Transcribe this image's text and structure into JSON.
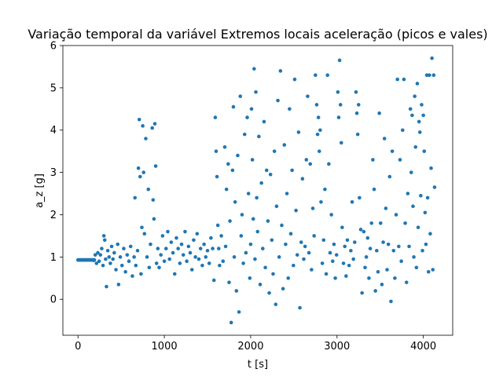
{
  "chart_data": {
    "type": "scatter",
    "title": "Variação temporal da variável Extremos locais aceleração (picos e vales)",
    "xlabel": "t [s]",
    "ylabel": "a_z [g]",
    "xlim": [
      -175,
      4340
    ],
    "ylim": [
      -0.85,
      6.0
    ],
    "xticks": [
      0,
      1000,
      2000,
      3000,
      4000
    ],
    "yticks": [
      0,
      1,
      2,
      3,
      4,
      5,
      6
    ],
    "grid": false,
    "legend": "none",
    "marker_color": "#1f77b4",
    "series": [
      {
        "points": [
          [
            0,
            0.93
          ],
          [
            10,
            0.93
          ],
          [
            20,
            0.93
          ],
          [
            30,
            0.93
          ],
          [
            40,
            0.93
          ],
          [
            50,
            0.93
          ],
          [
            60,
            0.93
          ],
          [
            70,
            0.93
          ],
          [
            80,
            0.93
          ],
          [
            90,
            0.93
          ],
          [
            100,
            0.93
          ],
          [
            110,
            0.93
          ],
          [
            120,
            0.93
          ],
          [
            130,
            0.93
          ],
          [
            140,
            0.93
          ],
          [
            150,
            0.93
          ],
          [
            160,
            0.93
          ],
          [
            170,
            0.93
          ],
          [
            180,
            0.92
          ],
          [
            190,
            0.93
          ],
          [
            200,
            1.05
          ],
          [
            215,
            0.85
          ],
          [
            230,
            1.1
          ],
          [
            245,
            0.9
          ],
          [
            260,
            1.05
          ],
          [
            275,
            1.2
          ],
          [
            290,
            0.8
          ],
          [
            300,
            1.5
          ],
          [
            310,
            1.4
          ],
          [
            320,
            0.95
          ],
          [
            330,
            0.3
          ],
          [
            345,
            1.15
          ],
          [
            360,
            1.0
          ],
          [
            375,
            0.85
          ],
          [
            390,
            1.25
          ],
          [
            405,
            0.95
          ],
          [
            420,
            1.1
          ],
          [
            440,
            0.7
          ],
          [
            460,
            1.3
          ],
          [
            470,
            0.35
          ],
          [
            490,
            1.0
          ],
          [
            510,
            0.8
          ],
          [
            530,
            1.2
          ],
          [
            550,
            0.65
          ],
          [
            570,
            1.05
          ],
          [
            590,
            0.9
          ],
          [
            610,
            1.25
          ],
          [
            630,
            0.55
          ],
          [
            650,
            1.0
          ],
          [
            660,
            2.4
          ],
          [
            670,
            0.8
          ],
          [
            690,
            1.15
          ],
          [
            700,
            3.1
          ],
          [
            710,
            4.25
          ],
          [
            720,
            2.9
          ],
          [
            730,
            0.6
          ],
          [
            740,
            1.7
          ],
          [
            750,
            4.1
          ],
          [
            760,
            3.0
          ],
          [
            770,
            1.55
          ],
          [
            785,
            3.8
          ],
          [
            800,
            1.0
          ],
          [
            815,
            2.6
          ],
          [
            825,
            0.75
          ],
          [
            840,
            1.3
          ],
          [
            860,
            4.05
          ],
          [
            870,
            2.35
          ],
          [
            880,
            1.9
          ],
          [
            890,
            4.15
          ],
          [
            900,
            3.15
          ],
          [
            910,
            0.85
          ],
          [
            925,
            1.2
          ],
          [
            940,
            0.75
          ],
          [
            960,
            1.05
          ],
          [
            980,
            1.5
          ],
          [
            1000,
            0.9
          ],
          [
            1020,
            1.2
          ],
          [
            1040,
            1.6
          ],
          [
            1060,
            0.95
          ],
          [
            1080,
            1.35
          ],
          [
            1100,
            1.1
          ],
          [
            1120,
            0.6
          ],
          [
            1140,
            1.45
          ],
          [
            1160,
            1.2
          ],
          [
            1180,
            0.85
          ],
          [
            1200,
            1.3
          ],
          [
            1220,
            1.05
          ],
          [
            1240,
            1.6
          ],
          [
            1260,
            0.9
          ],
          [
            1280,
            1.25
          ],
          [
            1300,
            1.1
          ],
          [
            1320,
            0.7
          ],
          [
            1340,
            1.4
          ],
          [
            1360,
            1.0
          ],
          [
            1380,
            1.55
          ],
          [
            1400,
            0.95
          ],
          [
            1420,
            1.2
          ],
          [
            1440,
            0.8
          ],
          [
            1460,
            1.3
          ],
          [
            1480,
            1.0
          ],
          [
            1500,
            1.15
          ],
          [
            1520,
            0.85
          ],
          [
            1540,
            1.45
          ],
          [
            1560,
            1.2
          ],
          [
            1575,
            0.45
          ],
          [
            1590,
            4.3
          ],
          [
            1600,
            3.5
          ],
          [
            1610,
            2.9
          ],
          [
            1620,
            1.75
          ],
          [
            1630,
            1.2
          ],
          [
            1640,
            0.8
          ],
          [
            1660,
            1.5
          ],
          [
            1680,
            0.9
          ],
          [
            1700,
            3.6
          ],
          [
            1710,
            1.25
          ],
          [
            1720,
            2.6
          ],
          [
            1740,
            3.2
          ],
          [
            1750,
            0.4
          ],
          [
            1760,
            1.85
          ],
          [
            1775,
            -0.55
          ],
          [
            1790,
            3.05
          ],
          [
            1800,
            4.55
          ],
          [
            1810,
            1.0
          ],
          [
            1820,
            2.3
          ],
          [
            1835,
            0.2
          ],
          [
            1850,
            3.4
          ],
          [
            1865,
            -0.3
          ],
          [
            1880,
            4.8
          ],
          [
            1890,
            1.5
          ],
          [
            1900,
            2.0
          ],
          [
            1915,
            0.85
          ],
          [
            1930,
            3.9
          ],
          [
            1945,
            1.1
          ],
          [
            1960,
            4.3
          ],
          [
            1975,
            2.5
          ],
          [
            1990,
            0.5
          ],
          [
            2000,
            1.3
          ],
          [
            2010,
            4.5
          ],
          [
            2020,
            3.3
          ],
          [
            2030,
            1.9
          ],
          [
            2040,
            5.45
          ],
          [
            2050,
            0.95
          ],
          [
            2060,
            4.9
          ],
          [
            2070,
            2.4
          ],
          [
            2080,
            1.6
          ],
          [
            2095,
            3.85
          ],
          [
            2110,
            0.35
          ],
          [
            2125,
            2.75
          ],
          [
            2140,
            1.2
          ],
          [
            2155,
            4.2
          ],
          [
            2170,
            0.75
          ],
          [
            2185,
            3.05
          ],
          [
            2200,
            1.85
          ],
          [
            2215,
            0.15
          ],
          [
            2230,
            2.95
          ],
          [
            2245,
            1.4
          ],
          [
            2260,
            0.6
          ],
          [
            2275,
            3.5
          ],
          [
            2290,
            -0.12
          ],
          [
            2300,
            2.2
          ],
          [
            2315,
            4.7
          ],
          [
            2330,
            1.0
          ],
          [
            2345,
            5.4
          ],
          [
            2360,
            1.75
          ],
          [
            2375,
            0.25
          ],
          [
            2390,
            3.65
          ],
          [
            2405,
            1.3
          ],
          [
            2420,
            2.5
          ],
          [
            2435,
            0.5
          ],
          [
            2450,
            4.5
          ],
          [
            2465,
            1.55
          ],
          [
            2480,
            3.05
          ],
          [
            2495,
            0.8
          ],
          [
            2510,
            5.2
          ],
          [
            2525,
            2.1
          ],
          [
            2540,
            1.05
          ],
          [
            2555,
            3.95
          ],
          [
            2570,
            -0.2
          ],
          [
            2585,
            1.35
          ],
          [
            2600,
            2.85
          ],
          [
            2615,
            0.95
          ],
          [
            2630,
            1.25
          ],
          [
            2645,
            3.3
          ],
          [
            2660,
            4.8
          ],
          [
            2675,
            1.1
          ],
          [
            2690,
            3.2
          ],
          [
            2705,
            0.7
          ],
          [
            2720,
            2.15
          ],
          [
            2735,
            1.5
          ],
          [
            2750,
            5.3
          ],
          [
            2765,
            4.6
          ],
          [
            2775,
            3.9
          ],
          [
            2785,
            4.3
          ],
          [
            2795,
            3.5
          ],
          [
            2805,
            4.0
          ],
          [
            2815,
            2.3
          ],
          [
            2830,
            0.85
          ],
          [
            2845,
            1.4
          ],
          [
            2860,
            2.6
          ],
          [
            2875,
            0.6
          ],
          [
            2890,
            5.3
          ],
          [
            2905,
            3.2
          ],
          [
            2920,
            1.1
          ],
          [
            2935,
            2.0
          ],
          [
            2950,
            0.9
          ],
          [
            2965,
            1.3
          ],
          [
            2980,
            0.5
          ],
          [
            2995,
            1.05
          ],
          [
            3010,
            4.9
          ],
          [
            3020,
            4.3
          ],
          [
            3030,
            5.65
          ],
          [
            3040,
            4.6
          ],
          [
            3050,
            3.7
          ],
          [
            3060,
            1.7
          ],
          [
            3075,
            0.85
          ],
          [
            3090,
            1.25
          ],
          [
            3105,
            0.55
          ],
          [
            3120,
            1.4
          ],
          [
            3140,
            0.8
          ],
          [
            3160,
            1.15
          ],
          [
            3175,
            2.3
          ],
          [
            3190,
            0.95
          ],
          [
            3205,
            1.35
          ],
          [
            3220,
            4.9
          ],
          [
            3230,
            4.4
          ],
          [
            3240,
            3.9
          ],
          [
            3250,
            4.6
          ],
          [
            3260,
            2.4
          ],
          [
            3275,
            1.65
          ],
          [
            3290,
            0.15
          ],
          [
            3310,
            1.6
          ],
          [
            3325,
            0.75
          ],
          [
            3340,
            1.0
          ],
          [
            3355,
            1.45
          ],
          [
            3370,
            0.5
          ],
          [
            3385,
            1.2
          ],
          [
            3400,
            1.8
          ],
          [
            3415,
            3.3
          ],
          [
            3430,
            2.6
          ],
          [
            3445,
            0.2
          ],
          [
            3460,
            1.15
          ],
          [
            3475,
            0.65
          ],
          [
            3490,
            4.4
          ],
          [
            3505,
            1.8
          ],
          [
            3520,
            0.35
          ],
          [
            3535,
            1.35
          ],
          [
            3550,
            3.8
          ],
          [
            3565,
            2.15
          ],
          [
            3580,
            0.7
          ],
          [
            3595,
            1.3
          ],
          [
            3610,
            2.9
          ],
          [
            3625,
            -0.05
          ],
          [
            3640,
            3.5
          ],
          [
            3655,
            1.15
          ],
          [
            3670,
            0.5
          ],
          [
            3685,
            2.0
          ],
          [
            3700,
            5.2
          ],
          [
            3715,
            1.25
          ],
          [
            3730,
            3.3
          ],
          [
            3745,
            0.9
          ],
          [
            3760,
            4.0
          ],
          [
            3775,
            5.2
          ],
          [
            3790,
            1.8
          ],
          [
            3805,
            0.4
          ],
          [
            3820,
            2.5
          ],
          [
            3835,
            1.25
          ],
          [
            3850,
            4.5
          ],
          [
            3860,
            3.0
          ],
          [
            3870,
            4.35
          ],
          [
            3880,
            2.2
          ],
          [
            3890,
            1.0
          ],
          [
            3900,
            4.8
          ],
          [
            3910,
            3.6
          ],
          [
            3920,
            0.75
          ],
          [
            3930,
            5.1
          ],
          [
            3940,
            1.7
          ],
          [
            3950,
            4.2
          ],
          [
            3960,
            3.95
          ],
          [
            3970,
            2.45
          ],
          [
            3980,
            4.6
          ],
          [
            3990,
            1.15
          ],
          [
            4000,
            4.35
          ],
          [
            4010,
            3.5
          ],
          [
            4020,
            2.05
          ],
          [
            4030,
            1.3
          ],
          [
            4040,
            5.3
          ],
          [
            4050,
            2.4
          ],
          [
            4060,
            0.65
          ],
          [
            4070,
            5.3
          ],
          [
            4080,
            1.55
          ],
          [
            4090,
            3.1
          ],
          [
            4100,
            5.7
          ],
          [
            4110,
            0.7
          ],
          [
            4120,
            5.3
          ],
          [
            4130,
            2.65
          ]
        ]
      }
    ]
  }
}
